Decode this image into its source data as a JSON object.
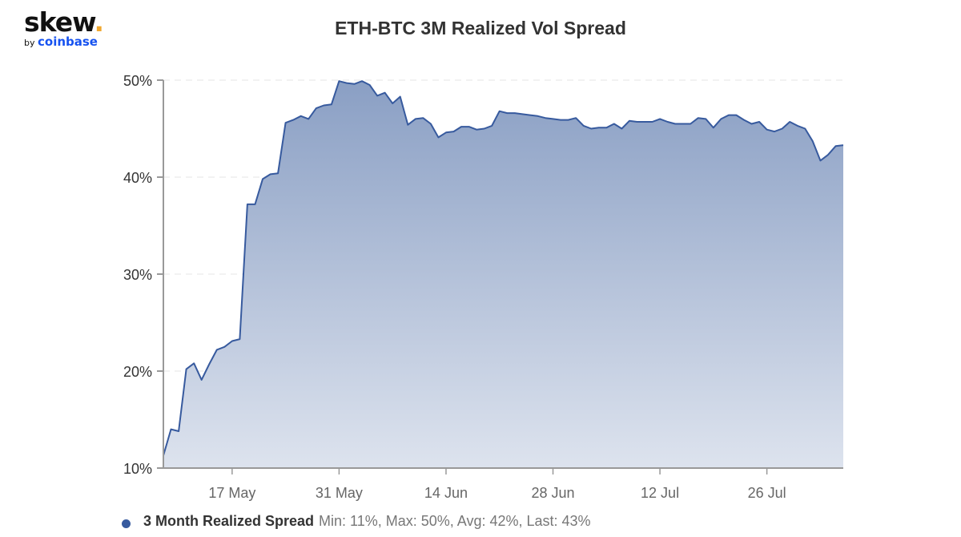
{
  "logo": {
    "main": "skew",
    "dot": ".",
    "by": "by",
    "brand": "coinbase"
  },
  "title": "ETH-BTC 3M Realized Vol Spread",
  "colors": {
    "line": "#375a9e",
    "fill_top": "#8a9fc4",
    "fill_bottom": "#dde3ee",
    "grid": "#e6e6e6",
    "axis": "#999999"
  },
  "legend": {
    "name": "3 Month Realized Spread",
    "stats": "Min: 11%, Max: 50%, Avg: 42%, Last: 43%"
  },
  "chart_data": {
    "type": "area",
    "title": "ETH-BTC 3M Realized Vol Spread",
    "xlabel": "",
    "ylabel": "",
    "ylim": [
      10,
      50
    ],
    "y_ticks": [
      "10%",
      "20%",
      "30%",
      "40%",
      "50%"
    ],
    "x_ticks": [
      "17 May",
      "31 May",
      "14 Jun",
      "28 Jun",
      "12 Jul",
      "26 Jul"
    ],
    "grid": true,
    "legend_position": "bottom-left",
    "x_start": "8 May",
    "x_end": "5 Aug",
    "x_interval": "1 day",
    "series": [
      {
        "name": "3 Month Realized Spread",
        "summary": {
          "min": 11,
          "max": 50,
          "avg": 42,
          "last": 43
        },
        "values": [
          11.3,
          14.0,
          13.8,
          20.2,
          20.8,
          19.1,
          20.7,
          22.2,
          22.5,
          23.1,
          23.3,
          37.2,
          37.2,
          39.8,
          40.3,
          40.4,
          45.6,
          45.9,
          46.3,
          46.0,
          47.1,
          47.4,
          47.5,
          49.9,
          49.7,
          49.6,
          49.9,
          49.5,
          48.4,
          48.7,
          47.6,
          48.3,
          45.4,
          46.0,
          46.1,
          45.5,
          44.1,
          44.6,
          44.7,
          45.2,
          45.2,
          44.9,
          45.0,
          45.3,
          46.8,
          46.6,
          46.6,
          46.5,
          46.4,
          46.3,
          46.1,
          46.0,
          45.9,
          45.9,
          46.1,
          45.3,
          45.0,
          45.1,
          45.1,
          45.5,
          45.0,
          45.8,
          45.7,
          45.7,
          45.7,
          46.0,
          45.7,
          45.5,
          45.5,
          45.5,
          46.1,
          46.0,
          45.1,
          46.0,
          46.4,
          46.4,
          45.9,
          45.5,
          45.7,
          44.9,
          44.7,
          45.0,
          45.7,
          45.3,
          45.0,
          43.7,
          41.7,
          42.3,
          43.2,
          43.3
        ]
      }
    ]
  }
}
